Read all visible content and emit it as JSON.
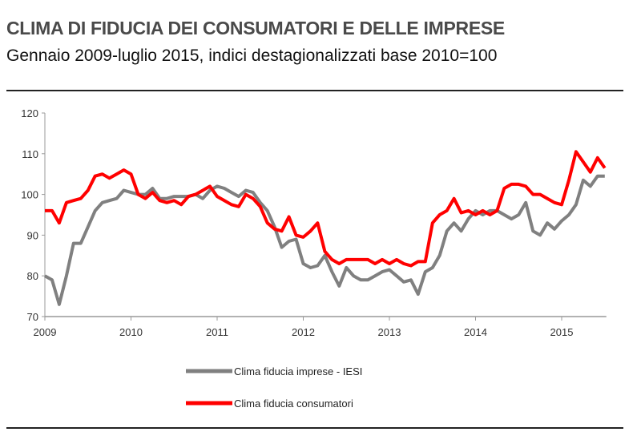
{
  "chart_data": {
    "type": "line",
    "title": "CLIMA DI FIDUCIA DEI CONSUMATORI E DELLE IMPRESE",
    "subtitle": "Gennaio 2009-luglio 2015, indici destagionalizzati base 2010=100",
    "x_start": "2009-01",
    "x_end": "2015-07",
    "x_frequency": "monthly",
    "x_tick_labels": [
      "2009",
      "2010",
      "2011",
      "2012",
      "2013",
      "2014",
      "2015"
    ],
    "y_tick_labels": [
      "70",
      "80",
      "90",
      "100",
      "110",
      "120"
    ],
    "ylim": [
      70,
      120
    ],
    "grid": false,
    "legend_position": "bottom",
    "series": [
      {
        "name": "Clima fiducia imprese - IESI",
        "color": "#808080",
        "values": [
          80,
          79,
          73,
          80,
          88,
          88,
          92,
          96,
          98,
          98.5,
          99,
          101,
          100.5,
          100,
          100,
          101.5,
          99,
          99,
          99.5,
          99.5,
          99.5,
          100,
          99,
          101,
          102,
          101.5,
          100.5,
          99.5,
          101,
          100.5,
          98,
          96,
          92,
          87,
          88.5,
          89,
          83,
          82,
          82.5,
          85,
          81,
          77.5,
          82,
          80,
          79,
          79,
          80,
          81,
          81.5,
          80,
          78.5,
          79,
          75.5,
          81,
          82,
          85,
          91,
          93,
          91,
          94,
          96,
          95,
          96,
          96,
          95,
          94,
          95,
          98,
          91,
          90,
          93,
          91.5,
          93.5,
          95,
          97.5,
          103.5,
          102,
          104.5,
          104.5
        ]
      },
      {
        "name": "Clima fiducia consumatori",
        "color": "#ff0000",
        "values": [
          96,
          96,
          93,
          98,
          98.5,
          99,
          101,
          104.5,
          105,
          104,
          105,
          106,
          105,
          100,
          99,
          100.5,
          98.5,
          98,
          98.5,
          97.5,
          99.5,
          100,
          101,
          102,
          99.5,
          98.5,
          97.5,
          97,
          100,
          99,
          97,
          93,
          91.5,
          91,
          94.5,
          90,
          89.5,
          91,
          93,
          86,
          84,
          83,
          84,
          84,
          84,
          84,
          83,
          84,
          83,
          84,
          83,
          82.5,
          83.5,
          83.5,
          93,
          95,
          96,
          99,
          95.5,
          96,
          95,
          96,
          95,
          96,
          101.5,
          102.5,
          102.5,
          102,
          100,
          100,
          99,
          98,
          97.5,
          103.5,
          110.5,
          108,
          105.5,
          109,
          106.5
        ]
      }
    ]
  }
}
